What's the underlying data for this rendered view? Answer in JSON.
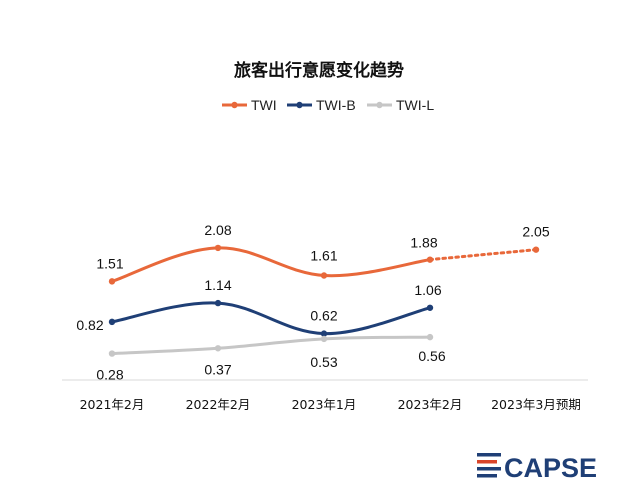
{
  "chart_data": {
    "type": "line",
    "title": "旅客出行意愿变化趋势",
    "xlabel": "",
    "ylabel": "",
    "categories": [
      "2021年2月",
      "2022年2月",
      "2023年1月",
      "2023年2月",
      "2023年3月预期"
    ],
    "ylim": [
      0,
      2.5
    ],
    "grid": false,
    "legend_position": "top",
    "series": [
      {
        "name": "TWI",
        "color": "#e8683a",
        "values": [
          1.51,
          2.08,
          1.61,
          1.88,
          2.05
        ],
        "dashed_from_index": 3
      },
      {
        "name": "TWI-B",
        "color": "#1f3f76",
        "values": [
          0.82,
          1.14,
          0.62,
          1.06,
          null
        ]
      },
      {
        "name": "TWI-L",
        "color": "#c6c6c6",
        "values": [
          0.28,
          0.37,
          0.53,
          0.56,
          null
        ]
      }
    ]
  },
  "logo": {
    "text": "CAPSE",
    "primary_color": "#1f3f76",
    "accent_color": "#d9452a"
  }
}
